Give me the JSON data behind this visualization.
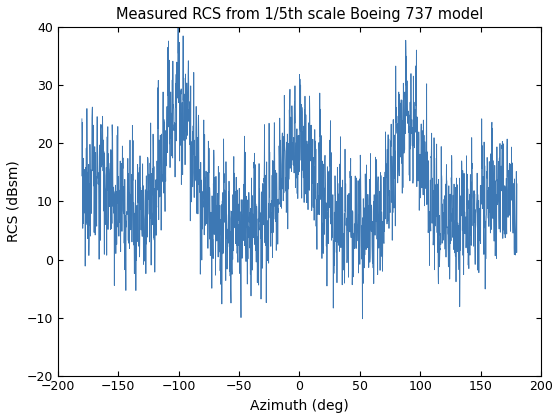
{
  "title": "Measured RCS from 1/5th scale Boeing 737 model",
  "xlabel": "Azimuth (deg)",
  "ylabel": "RCS (dBsm)",
  "xlim": [
    -200,
    200
  ],
  "ylim": [
    -20,
    40
  ],
  "xticks": [
    -200,
    -150,
    -100,
    -50,
    0,
    50,
    100,
    150,
    200
  ],
  "yticks": [
    -20,
    -10,
    0,
    10,
    20,
    30,
    40
  ],
  "line_color": "#3d78b4",
  "line_width": 0.6,
  "figsize": [
    5.6,
    4.2
  ],
  "dpi": 100,
  "bg_color": "#ffffff",
  "title_fontsize": 10.5,
  "label_fontsize": 10,
  "tick_fontsize": 9
}
